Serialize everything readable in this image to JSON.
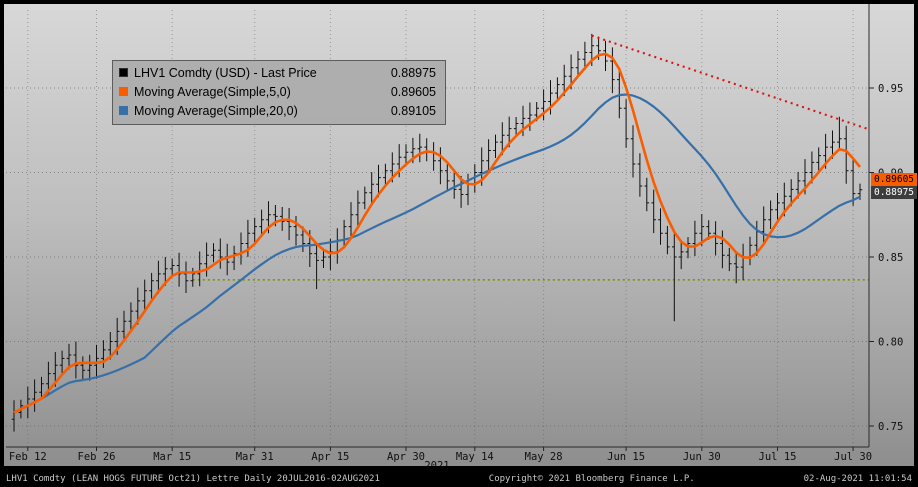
{
  "legend": {
    "items": [
      {
        "label": "LHV1 Comdty (USD) - Last Price",
        "value": "0.88975",
        "swatch_color": "#000000"
      },
      {
        "label": "Moving Average(Simple,5,0)",
        "value": "0.89605",
        "swatch_color": "#f95d00"
      },
      {
        "label": "Moving Average(Simple,20,0)",
        "value": "0.89105",
        "swatch_color": "#376fa8"
      }
    ]
  },
  "price_tags": [
    {
      "value": "0.89605",
      "price": 0.89605,
      "bg": "#f95d00",
      "fg": "#000000"
    },
    {
      "value": "0.88975",
      "price": 0.88975,
      "bg": "#3d3d3d",
      "fg": "#ffffff"
    }
  ],
  "footer": {
    "left": "LHV1 Comdty (LEAN HOGS FUTURE  Oct21) Lettre  Daily  20JUL2016-02AUG2021",
    "center": "Copyright© 2021 Bloomberg Finance L.P.",
    "right": "02-Aug-2021 11:01:54"
  },
  "chart_data": {
    "type": "candlestick",
    "title": "LHV1 Comdty (USD) - Last Price",
    "last_price": 0.88975,
    "ylim": [
      0.739,
      0.996
    ],
    "y_ticks": [
      0.75,
      0.8,
      0.85,
      0.9,
      0.95
    ],
    "x_ticks": [
      {
        "label": "Feb 12",
        "index": 2
      },
      {
        "label": "Feb 26",
        "index": 12
      },
      {
        "label": "Mar 15",
        "index": 23
      },
      {
        "label": "Mar 31",
        "index": 35
      },
      {
        "label": "Apr 15",
        "index": 46
      },
      {
        "label": "Apr 30",
        "index": 57
      },
      {
        "label": "May 14",
        "index": 67
      },
      {
        "label": "May 28",
        "index": 77
      },
      {
        "label": "Jun 15",
        "index": 89
      },
      {
        "label": "Jun 30",
        "index": 100
      },
      {
        "label": "Jul 15",
        "index": 111
      },
      {
        "label": "Jul 30",
        "index": 122
      }
    ],
    "year_label": "2021",
    "dates": [
      "Feb 10",
      "Feb 11",
      "Feb 12",
      "Feb 15",
      "Feb 16",
      "Feb 17",
      "Feb 18",
      "Feb 19",
      "Feb 22",
      "Feb 23",
      "Feb 24",
      "Feb 25",
      "Feb 26",
      "Mar 1",
      "Mar 2",
      "Mar 3",
      "Mar 4",
      "Mar 5",
      "Mar 8",
      "Mar 9",
      "Mar 10",
      "Mar 11",
      "Mar 12",
      "Mar 15",
      "Mar 16",
      "Mar 17",
      "Mar 18",
      "Mar 19",
      "Mar 22",
      "Mar 23",
      "Mar 24",
      "Mar 25",
      "Mar 26",
      "Mar 29",
      "Mar 30",
      "Mar 31",
      "Apr 1",
      "Apr 2",
      "Apr 5",
      "Apr 6",
      "Apr 7",
      "Apr 8",
      "Apr 9",
      "Apr 12",
      "Apr 13",
      "Apr 14",
      "Apr 15",
      "Apr 16",
      "Apr 19",
      "Apr 20",
      "Apr 21",
      "Apr 22",
      "Apr 23",
      "Apr 26",
      "Apr 27",
      "Apr 28",
      "Apr 29",
      "Apr 30",
      "May 3",
      "May 4",
      "May 5",
      "May 6",
      "May 7",
      "May 10",
      "May 11",
      "May 12",
      "May 13",
      "May 14",
      "May 17",
      "May 18",
      "May 19",
      "May 20",
      "May 21",
      "May 24",
      "May 25",
      "May 26",
      "May 27",
      "May 28",
      "May 31",
      "Jun 1",
      "Jun 2",
      "Jun 3",
      "Jun 4",
      "Jun 7",
      "Jun 8",
      "Jun 9",
      "Jun 10",
      "Jun 11",
      "Jun 14",
      "Jun 15",
      "Jun 16",
      "Jun 17",
      "Jun 18",
      "Jun 21",
      "Jun 22",
      "Jun 23",
      "Jun 24",
      "Jun 25",
      "Jun 28",
      "Jun 29",
      "Jun 30",
      "Jul 1",
      "Jul 2",
      "Jul 5",
      "Jul 6",
      "Jul 7",
      "Jul 8",
      "Jul 9",
      "Jul 12",
      "Jul 13",
      "Jul 14",
      "Jul 15",
      "Jul 16",
      "Jul 19",
      "Jul 20",
      "Jul 21",
      "Jul 22",
      "Jul 23",
      "Jul 26",
      "Jul 27",
      "Jul 28",
      "Jul 29",
      "Jul 30",
      "Aug 2"
    ],
    "close": [
      0.758,
      0.762,
      0.766,
      0.77,
      0.775,
      0.781,
      0.786,
      0.79,
      0.792,
      0.786,
      0.783,
      0.786,
      0.79,
      0.795,
      0.8,
      0.806,
      0.812,
      0.818,
      0.824,
      0.83,
      0.836,
      0.84,
      0.843,
      0.845,
      0.84,
      0.836,
      0.84,
      0.846,
      0.851,
      0.854,
      0.85,
      0.847,
      0.852,
      0.858,
      0.864,
      0.868,
      0.872,
      0.875,
      0.874,
      0.871,
      0.868,
      0.863,
      0.858,
      0.852,
      0.848,
      0.85,
      0.853,
      0.86,
      0.868,
      0.875,
      0.882,
      0.888,
      0.893,
      0.897,
      0.901,
      0.905,
      0.909,
      0.912,
      0.914,
      0.915,
      0.912,
      0.907,
      0.901,
      0.895,
      0.89,
      0.887,
      0.893,
      0.9,
      0.907,
      0.913,
      0.918,
      0.922,
      0.926,
      0.929,
      0.932,
      0.934,
      0.938,
      0.942,
      0.947,
      0.952,
      0.957,
      0.962,
      0.967,
      0.971,
      0.975,
      0.972,
      0.966,
      0.955,
      0.938,
      0.92,
      0.905,
      0.892,
      0.882,
      0.872,
      0.864,
      0.856,
      0.85,
      0.853,
      0.858,
      0.864,
      0.868,
      0.864,
      0.858,
      0.851,
      0.846,
      0.844,
      0.85,
      0.857,
      0.865,
      0.872,
      0.878,
      0.882,
      0.886,
      0.89,
      0.895,
      0.9,
      0.906,
      0.91,
      0.915,
      0.918,
      0.92,
      0.901,
      0.8875,
      0.88975
    ],
    "special_highs": {
      "84": 0.982,
      "120": 0.933
    },
    "special_lows": {
      "44": 0.831,
      "96": 0.812,
      "105": 0.8345
    },
    "series": [
      {
        "name": "Moving Average(Simple,5,0)",
        "derived": "sma",
        "window": 5,
        "value": 0.89605,
        "color": "#f95d00"
      },
      {
        "name": "Moving Average(Simple,20,0)",
        "derived": "sma",
        "window": 20,
        "value": 0.89105,
        "color": "#376fa8"
      }
    ],
    "annotations": {
      "trendline": {
        "style": "dotted",
        "color": "#dd1111",
        "from": {
          "index": 84,
          "price": 0.981
        },
        "to_price_at_right_edge": 0.9255
      },
      "support_line": {
        "style": "dotted",
        "color": "#789400",
        "price": 0.8365,
        "from_index": 26
      }
    },
    "colors": {
      "bars": "#101010",
      "background_top": "#d8d8d8",
      "background_bottom": "#8d8d8d"
    }
  }
}
